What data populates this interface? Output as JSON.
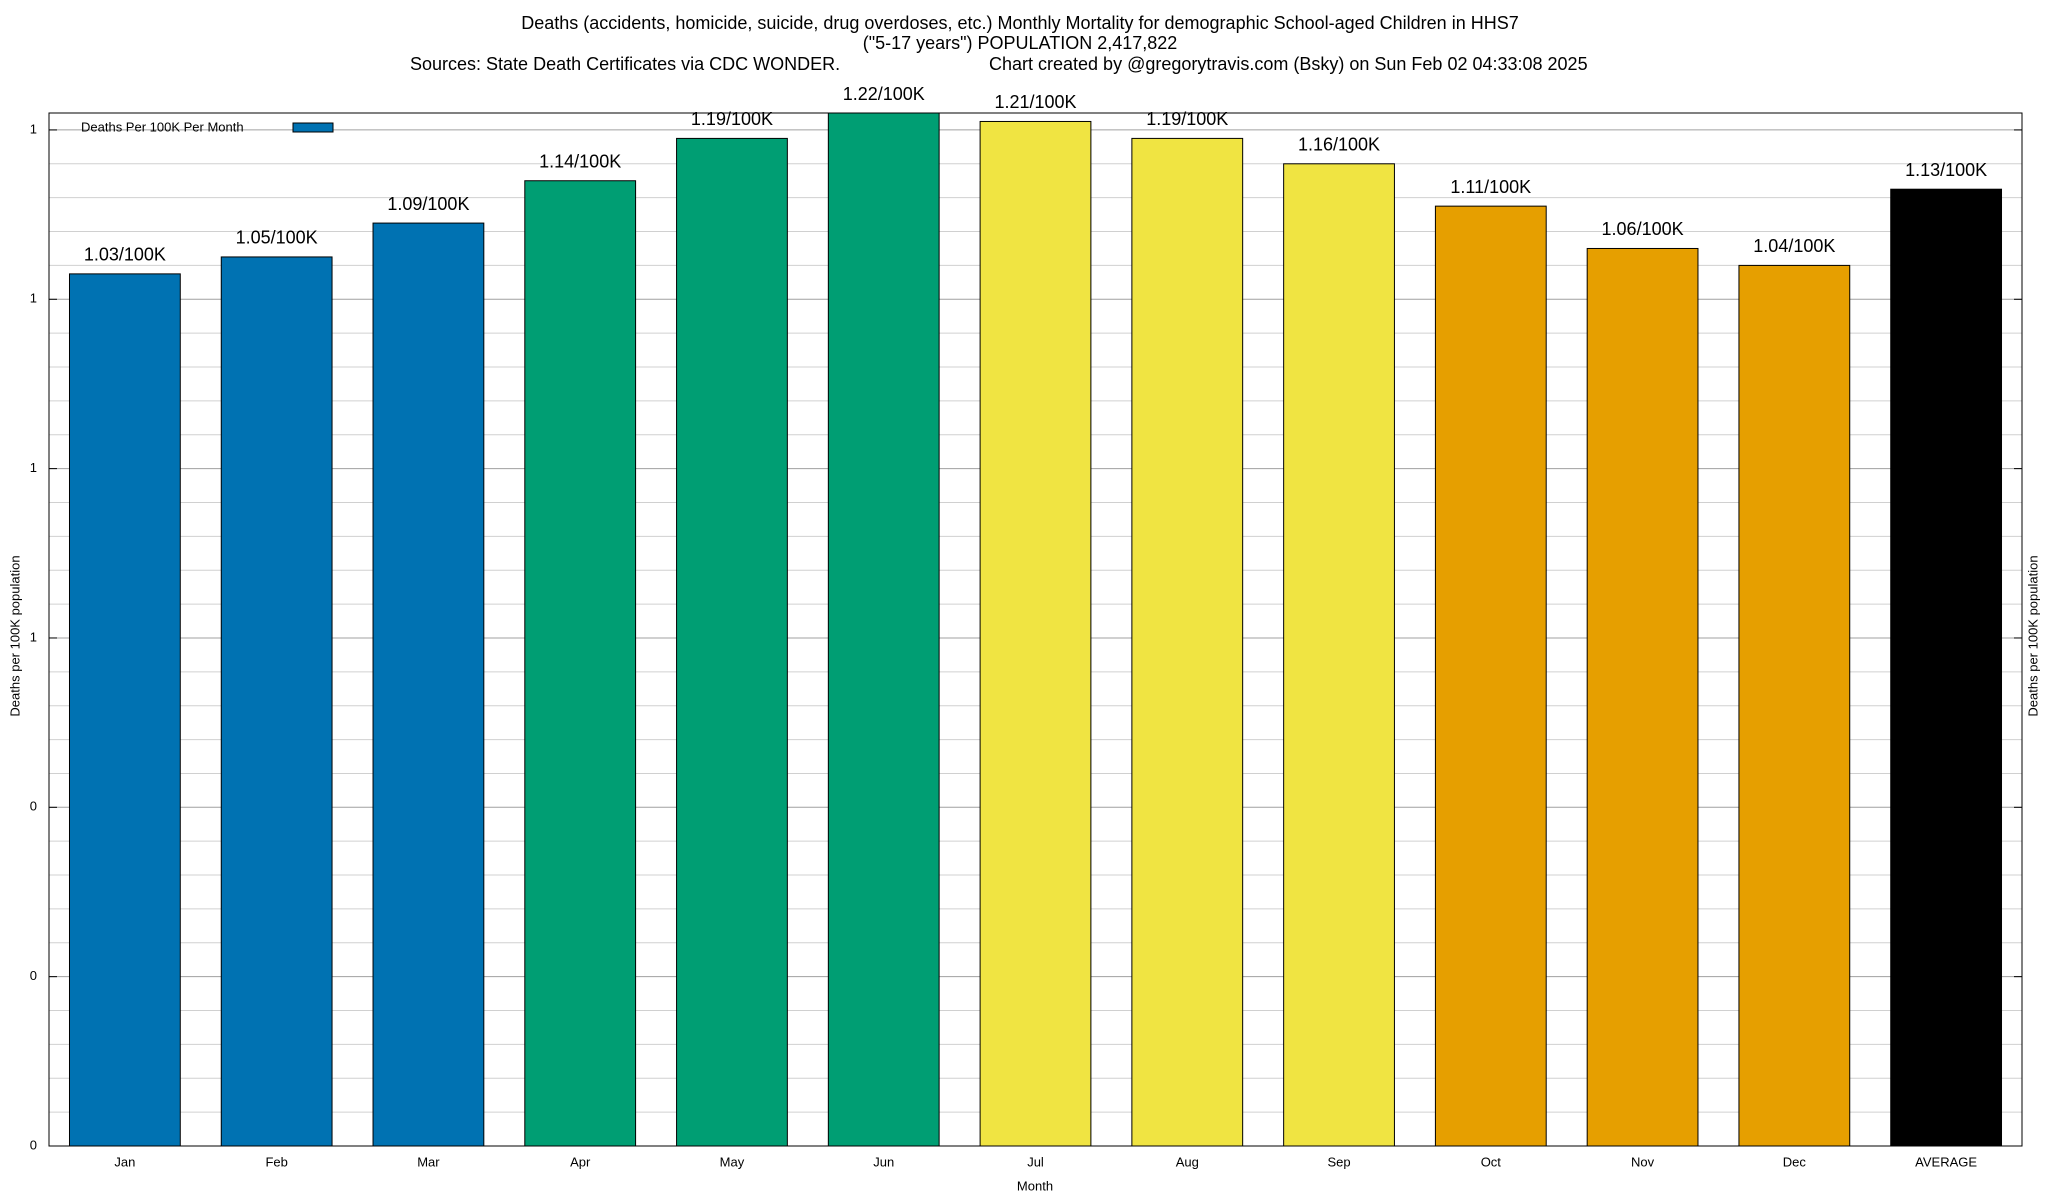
{
  "chart_data": {
    "type": "bar",
    "title": "Deaths (accidents, homicide, suicide, drug overdoses, etc.) Monthly Mortality for demographic School-aged Children in HHS7",
    "subtitle": [
      "(\"5-17 years\") POPULATION 2,417,822",
      "Sources: State Death Certificates via CDC WONDER.",
      "Chart created by @gregorytravis.com (Bsky) on Sun Feb 02 04:33:08 2025"
    ],
    "xlabel": "Month",
    "ylabel": "Deaths per 100K population",
    "y2label": "Deaths per 100K population",
    "categories": [
      "Jan",
      "Feb",
      "Mar",
      "Apr",
      "May",
      "Jun",
      "Jul",
      "Aug",
      "Sep",
      "Oct",
      "Nov",
      "Dec",
      "AVERAGE"
    ],
    "series": [
      {
        "name": "Deaths Per 100K Per Month",
        "color": "#0072b2",
        "colors": [
          "#0072b2",
          "#0072b2",
          "#0072b2",
          "#009e73",
          "#009e73",
          "#009e73",
          "#f0e442",
          "#f0e442",
          "#f0e442",
          "#e69f00",
          "#e69f00",
          "#e69f00",
          "#000000"
        ],
        "values": [
          1.03,
          1.05,
          1.09,
          1.14,
          1.19,
          1.22,
          1.21,
          1.19,
          1.16,
          1.11,
          1.06,
          1.04,
          1.13
        ],
        "value_labels": [
          "1.03/100K",
          "1.05/100K",
          "1.09/100K",
          "1.14/100K",
          "1.19/100K",
          "1.22/100K",
          "1.21/100K",
          "1.19/100K",
          "1.16/100K",
          "1.11/100K",
          "1.06/100K",
          "1.04/100K",
          "1.13/100K"
        ]
      }
    ],
    "ylim": [
      0,
      1.22
    ],
    "yticks": [
      0,
      {
        "value": 0.2,
        "label": "0"
      },
      {
        "value": 0.4,
        "label": "0"
      },
      {
        "value": 0.6,
        "label": "1"
      },
      {
        "value": 0.8,
        "label": "1"
      },
      {
        "value": 1.0,
        "label": "1"
      },
      {
        "value": 1.2,
        "label": "1"
      }
    ],
    "grid": true,
    "legend": "top-left"
  }
}
